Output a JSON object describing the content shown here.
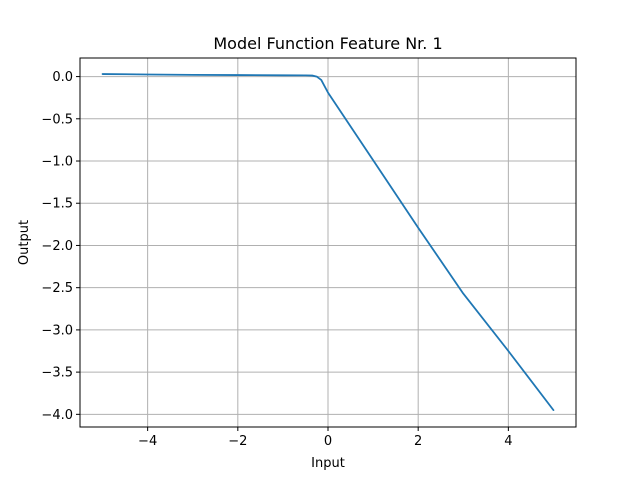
{
  "chart_data": {
    "type": "line",
    "title": "Model Function Feature Nr. 1",
    "xlabel": "Input",
    "ylabel": "Output",
    "xlim": [
      -5.5,
      5.5
    ],
    "ylim": [
      -4.15,
      0.22
    ],
    "xticks": [
      -4,
      -2,
      0,
      2,
      4
    ],
    "xtick_labels": [
      "−4",
      "−2",
      "0",
      "2",
      "4"
    ],
    "yticks": [
      0.0,
      -0.5,
      -1.0,
      -1.5,
      -2.0,
      -2.5,
      -3.0,
      -3.5,
      -4.0
    ],
    "ytick_labels": [
      "0.0",
      "−0.5",
      "−1.0",
      "−1.5",
      "−2.0",
      "−2.5",
      "−3.0",
      "−3.5",
      "−4.0"
    ],
    "grid": true,
    "series": [
      {
        "color": "#1f77b4",
        "x": [
          -5.0,
          -4.0,
          -3.0,
          -2.0,
          -1.0,
          -0.5,
          -0.35,
          -0.25,
          -0.15,
          0.0,
          1.0,
          2.0,
          3.0,
          4.0,
          5.0
        ],
        "y": [
          0.03,
          0.025,
          0.02,
          0.018,
          0.015,
          0.014,
          0.012,
          0.0,
          -0.04,
          -0.19,
          -0.99,
          -1.79,
          -2.57,
          -3.25,
          -3.95
        ]
      }
    ]
  }
}
